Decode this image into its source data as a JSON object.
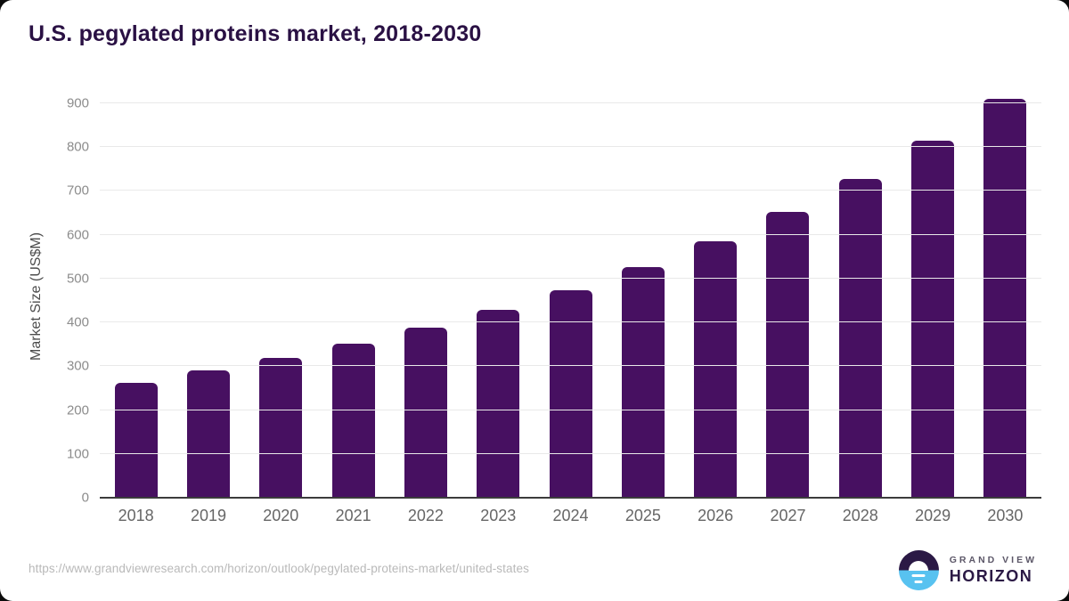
{
  "title": "U.S. pegylated proteins market, 2018-2030",
  "chart_data": {
    "type": "bar",
    "title": "U.S. pegylated proteins market, 2018-2030",
    "categories": [
      "2018",
      "2019",
      "2020",
      "2021",
      "2022",
      "2023",
      "2024",
      "2025",
      "2026",
      "2027",
      "2028",
      "2029",
      "2030"
    ],
    "values": [
      263,
      290,
      319,
      351,
      389,
      428,
      474,
      527,
      586,
      653,
      728,
      814,
      910
    ],
    "xlabel": "",
    "ylabel": "Market Size (US$M)",
    "ylim": [
      0,
      920
    ],
    "yticks": [
      0,
      100,
      200,
      300,
      400,
      500,
      600,
      700,
      800,
      900
    ],
    "grid": true,
    "legend": "none",
    "bar_color": "#471061"
  },
  "colors": {
    "title": "#2a1144",
    "bar": "#471061",
    "gridline": "#e9e9e9",
    "axis_line": "#3c3c3c",
    "logo_circle_top": "#2b1945",
    "logo_circle_bottom": "#58c2f0"
  },
  "footer": {
    "source_url": "https://www.grandviewresearch.com/horizon/outlook/pegylated-proteins-market/united-states",
    "logo": {
      "top_text": "GRAND VIEW",
      "bottom_text": "HORIZON"
    }
  }
}
